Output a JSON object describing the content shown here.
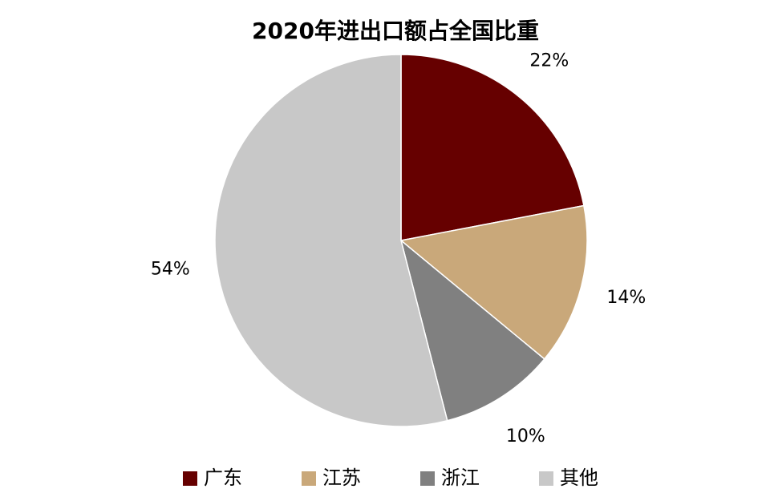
{
  "chart_data": {
    "type": "pie",
    "title": "2020年进出口额占全国比重",
    "categories": [
      "广东",
      "江苏",
      "浙江",
      "其他"
    ],
    "values": [
      22,
      14,
      10,
      54
    ],
    "value_labels": [
      "22%",
      "14%",
      "10%",
      "54%"
    ],
    "colors": [
      "#660000",
      "#c9a87a",
      "#808080",
      "#c8c8c8"
    ],
    "legend": "bottom"
  }
}
